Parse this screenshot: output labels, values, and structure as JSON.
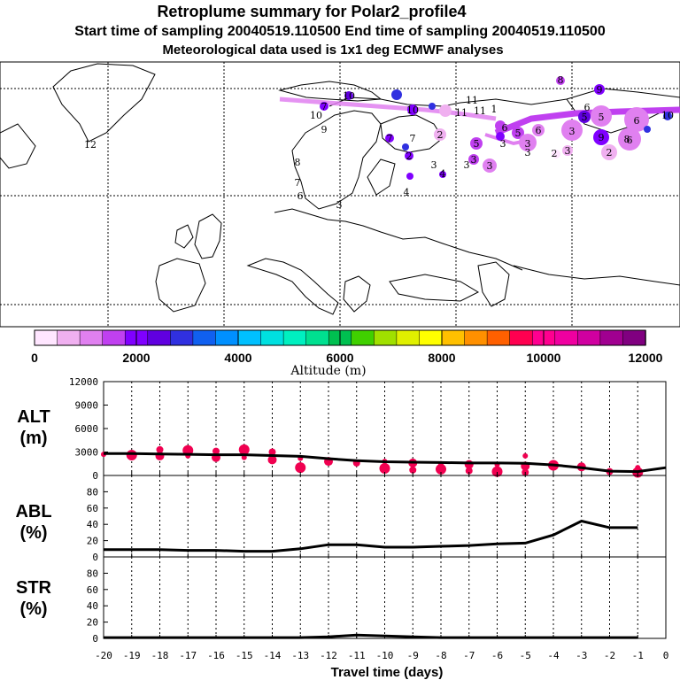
{
  "title": {
    "line1": "Retroplume summary for Polar2_profile4",
    "line2": "Start time of sampling 20040519.110500     End time of sampling 20040519.110500",
    "line3": "Meteorological data used is 1x1 deg ECMWF analyses"
  },
  "colorbar": {
    "label": "Altitude (m)",
    "tick_labels": [
      "0",
      "2000",
      "4000",
      "6000",
      "8000",
      "10000",
      "12000"
    ],
    "colors": [
      "#ffe6ff",
      "#f0b0f0",
      "#e080f0",
      "#c040f0",
      "#8000ff",
      "#6000e0",
      "#3030e0",
      "#1060f0",
      "#0090ff",
      "#00c0ff",
      "#00e0e0",
      "#00f0c0",
      "#00e090",
      "#00c050",
      "#40d000",
      "#a0e000",
      "#e0f000",
      "#ffff00",
      "#ffc000",
      "#ff9000",
      "#ff6000",
      "#ff0050",
      "#ff0090",
      "#f000a0",
      "#d000a0",
      "#a00090",
      "#800080"
    ]
  },
  "map": {
    "labels": [
      "12",
      "10",
      "7",
      "9",
      "8",
      "7",
      "6",
      "10",
      "10",
      "11",
      "11",
      "11",
      "1",
      "2",
      "7",
      "7",
      "5",
      "2",
      "3",
      "3",
      "4",
      "4",
      "3",
      "3",
      "3",
      "3",
      "3",
      "6",
      "5",
      "5",
      "5",
      "6",
      "6",
      "6",
      "3",
      "3",
      "2",
      "2",
      "3",
      "9",
      "9",
      "8",
      "8",
      "6",
      "10"
    ]
  },
  "panels": {
    "alt_label_1": "ALT",
    "alt_label_2": "(m)",
    "abl_label_1": "ABL",
    "abl_label_2": "(%)",
    "str_label_1": "STR",
    "str_label_2": "(%)",
    "xlabel": "Travel time (days)"
  },
  "chart_data": [
    {
      "type": "line",
      "name": "ALT",
      "title": "ALT (m)",
      "xlabel": "Travel time (days)",
      "ylabel": "ALT (m)",
      "xlim": [
        -20,
        0
      ],
      "ylim": [
        0,
        12000
      ],
      "x_tick_labels": [
        "-20",
        "-19",
        "-18",
        "-17",
        "-16",
        "-15",
        "-14",
        "-13",
        "-12",
        "-11",
        "-10",
        "-9",
        "-8",
        "-7",
        "-6",
        "-5",
        "-4",
        "-3",
        "-2",
        "-1",
        "0"
      ],
      "y_tick_labels": [
        "0",
        "3000",
        "6000",
        "9000",
        "12000"
      ],
      "x": [
        -20,
        -19,
        -18,
        -17,
        -16,
        -15,
        -14,
        -13,
        -12,
        -11,
        -10,
        -9,
        -8,
        -7,
        -6,
        -5,
        -4,
        -3,
        -2,
        -1,
        0
      ],
      "values": [
        2800,
        2800,
        2750,
        2700,
        2650,
        2650,
        2550,
        2450,
        2150,
        1900,
        1750,
        1700,
        1650,
        1600,
        1600,
        1550,
        1350,
        1000,
        550,
        500,
        1000
      ],
      "markers": [
        {
          "x": -20,
          "y": 2700
        },
        {
          "x": -19,
          "y": 2600
        },
        {
          "x": -18,
          "y": 2500
        },
        {
          "x": -18,
          "y": 3300
        },
        {
          "x": -17,
          "y": 2500
        },
        {
          "x": -17,
          "y": 3200
        },
        {
          "x": -16,
          "y": 2300
        },
        {
          "x": -16,
          "y": 3100
        },
        {
          "x": -15,
          "y": 2300
        },
        {
          "x": -15,
          "y": 3300
        },
        {
          "x": -14,
          "y": 2000
        },
        {
          "x": -14,
          "y": 3000
        },
        {
          "x": -13,
          "y": 2200
        },
        {
          "x": -13,
          "y": 1000
        },
        {
          "x": -12,
          "y": 1800
        },
        {
          "x": -11,
          "y": 1600
        },
        {
          "x": -10,
          "y": 1800
        },
        {
          "x": -10,
          "y": 900
        },
        {
          "x": -9,
          "y": 1600
        },
        {
          "x": -9,
          "y": 700
        },
        {
          "x": -8,
          "y": 1500
        },
        {
          "x": -8,
          "y": 800
        },
        {
          "x": -7,
          "y": 1400
        },
        {
          "x": -7,
          "y": 600
        },
        {
          "x": -6,
          "y": 1400
        },
        {
          "x": -6,
          "y": 500
        },
        {
          "x": -5,
          "y": 1200
        },
        {
          "x": -5,
          "y": 400
        },
        {
          "x": -5,
          "y": 2500
        },
        {
          "x": -4,
          "y": 1300
        },
        {
          "x": -3,
          "y": 1100
        },
        {
          "x": -2,
          "y": 500
        },
        {
          "x": -1,
          "y": 1000
        },
        {
          "x": -1,
          "y": 400
        }
      ]
    },
    {
      "type": "line",
      "name": "ABL",
      "title": "ABL (%)",
      "xlabel": "Travel time (days)",
      "ylabel": "ABL (%)",
      "xlim": [
        -20,
        0
      ],
      "ylim": [
        0,
        100
      ],
      "y_tick_labels": [
        "0",
        "20",
        "40",
        "60",
        "80"
      ],
      "x": [
        -20,
        -19,
        -18,
        -17,
        -16,
        -15,
        -14,
        -13,
        -12,
        -11,
        -10,
        -9,
        -8,
        -7,
        -6,
        -5,
        -4,
        -3,
        -2,
        -1
      ],
      "values": [
        9,
        9,
        9,
        8,
        8,
        7,
        7,
        10,
        15,
        15,
        12,
        12,
        13,
        14,
        16,
        17,
        27,
        44,
        36,
        36
      ]
    },
    {
      "type": "line",
      "name": "STR",
      "title": "STR (%)",
      "xlabel": "Travel time (days)",
      "ylabel": "STR (%)",
      "xlim": [
        -20,
        0
      ],
      "ylim": [
        0,
        100
      ],
      "y_tick_labels": [
        "0",
        "20",
        "40",
        "60",
        "80"
      ],
      "x": [
        -20,
        -19,
        -18,
        -17,
        -16,
        -15,
        -14,
        -13,
        -12,
        -11,
        -10,
        -9,
        -8,
        -7,
        -6,
        -5,
        -4,
        -3,
        -2,
        -1
      ],
      "values": [
        1,
        1,
        1,
        1,
        1,
        1,
        1,
        1,
        2,
        4,
        3,
        2,
        1,
        1,
        1,
        1,
        1,
        1,
        1,
        1
      ]
    }
  ]
}
